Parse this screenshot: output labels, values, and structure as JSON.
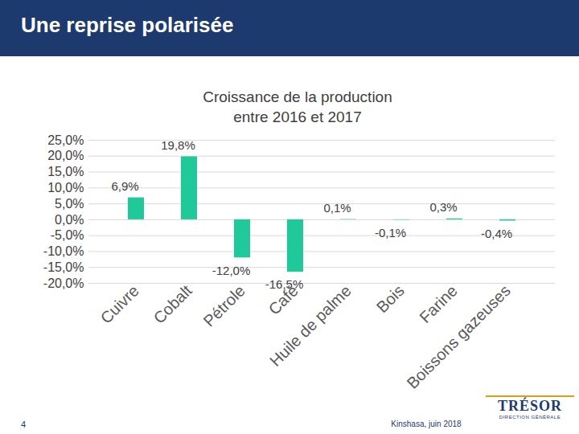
{
  "slide": {
    "header": "Une reprise polarisée",
    "page_number": 4,
    "footer": "Kinshasa, juin 2018",
    "logo": "TRÉSOR",
    "logo_subtitle": "DIRECTION GÉNÉRALE"
  },
  "chart_data": {
    "type": "bar",
    "title": "Croissance de la production\nentre 2016 et 2017",
    "categories": [
      "Cuivre",
      "Cobalt",
      "Pétrole",
      "Café",
      "Huile de palme",
      "Bois",
      "Farine",
      "Boissons gazeuses"
    ],
    "values": [
      6.9,
      19.8,
      -12.0,
      -16.5,
      0.1,
      -0.1,
      0.3,
      -0.4
    ],
    "value_labels": [
      "6,9%",
      "19,8%",
      "-12,0%",
      "-16,5%",
      "0,1%",
      "-0,1%",
      "0,3%",
      "-0,4%"
    ],
    "color": "#1fc99a",
    "ylim": [
      -20,
      25
    ],
    "yticks": [
      {
        "value": -20,
        "label": "-20,0%"
      },
      {
        "value": -15,
        "label": "-15,0%"
      },
      {
        "value": -10,
        "label": "-10,0%"
      },
      {
        "value": -5,
        "label": "-5,0%"
      },
      {
        "value": 0,
        "label": "0,0%"
      },
      {
        "value": 5,
        "label": "5,0%"
      },
      {
        "value": 10,
        "label": "10,0%"
      },
      {
        "value": 15,
        "label": "15,0%"
      },
      {
        "value": 20,
        "label": "20,0%"
      },
      {
        "value": 25,
        "label": "25,0%"
      }
    ],
    "grid": true,
    "data_labels": true
  }
}
